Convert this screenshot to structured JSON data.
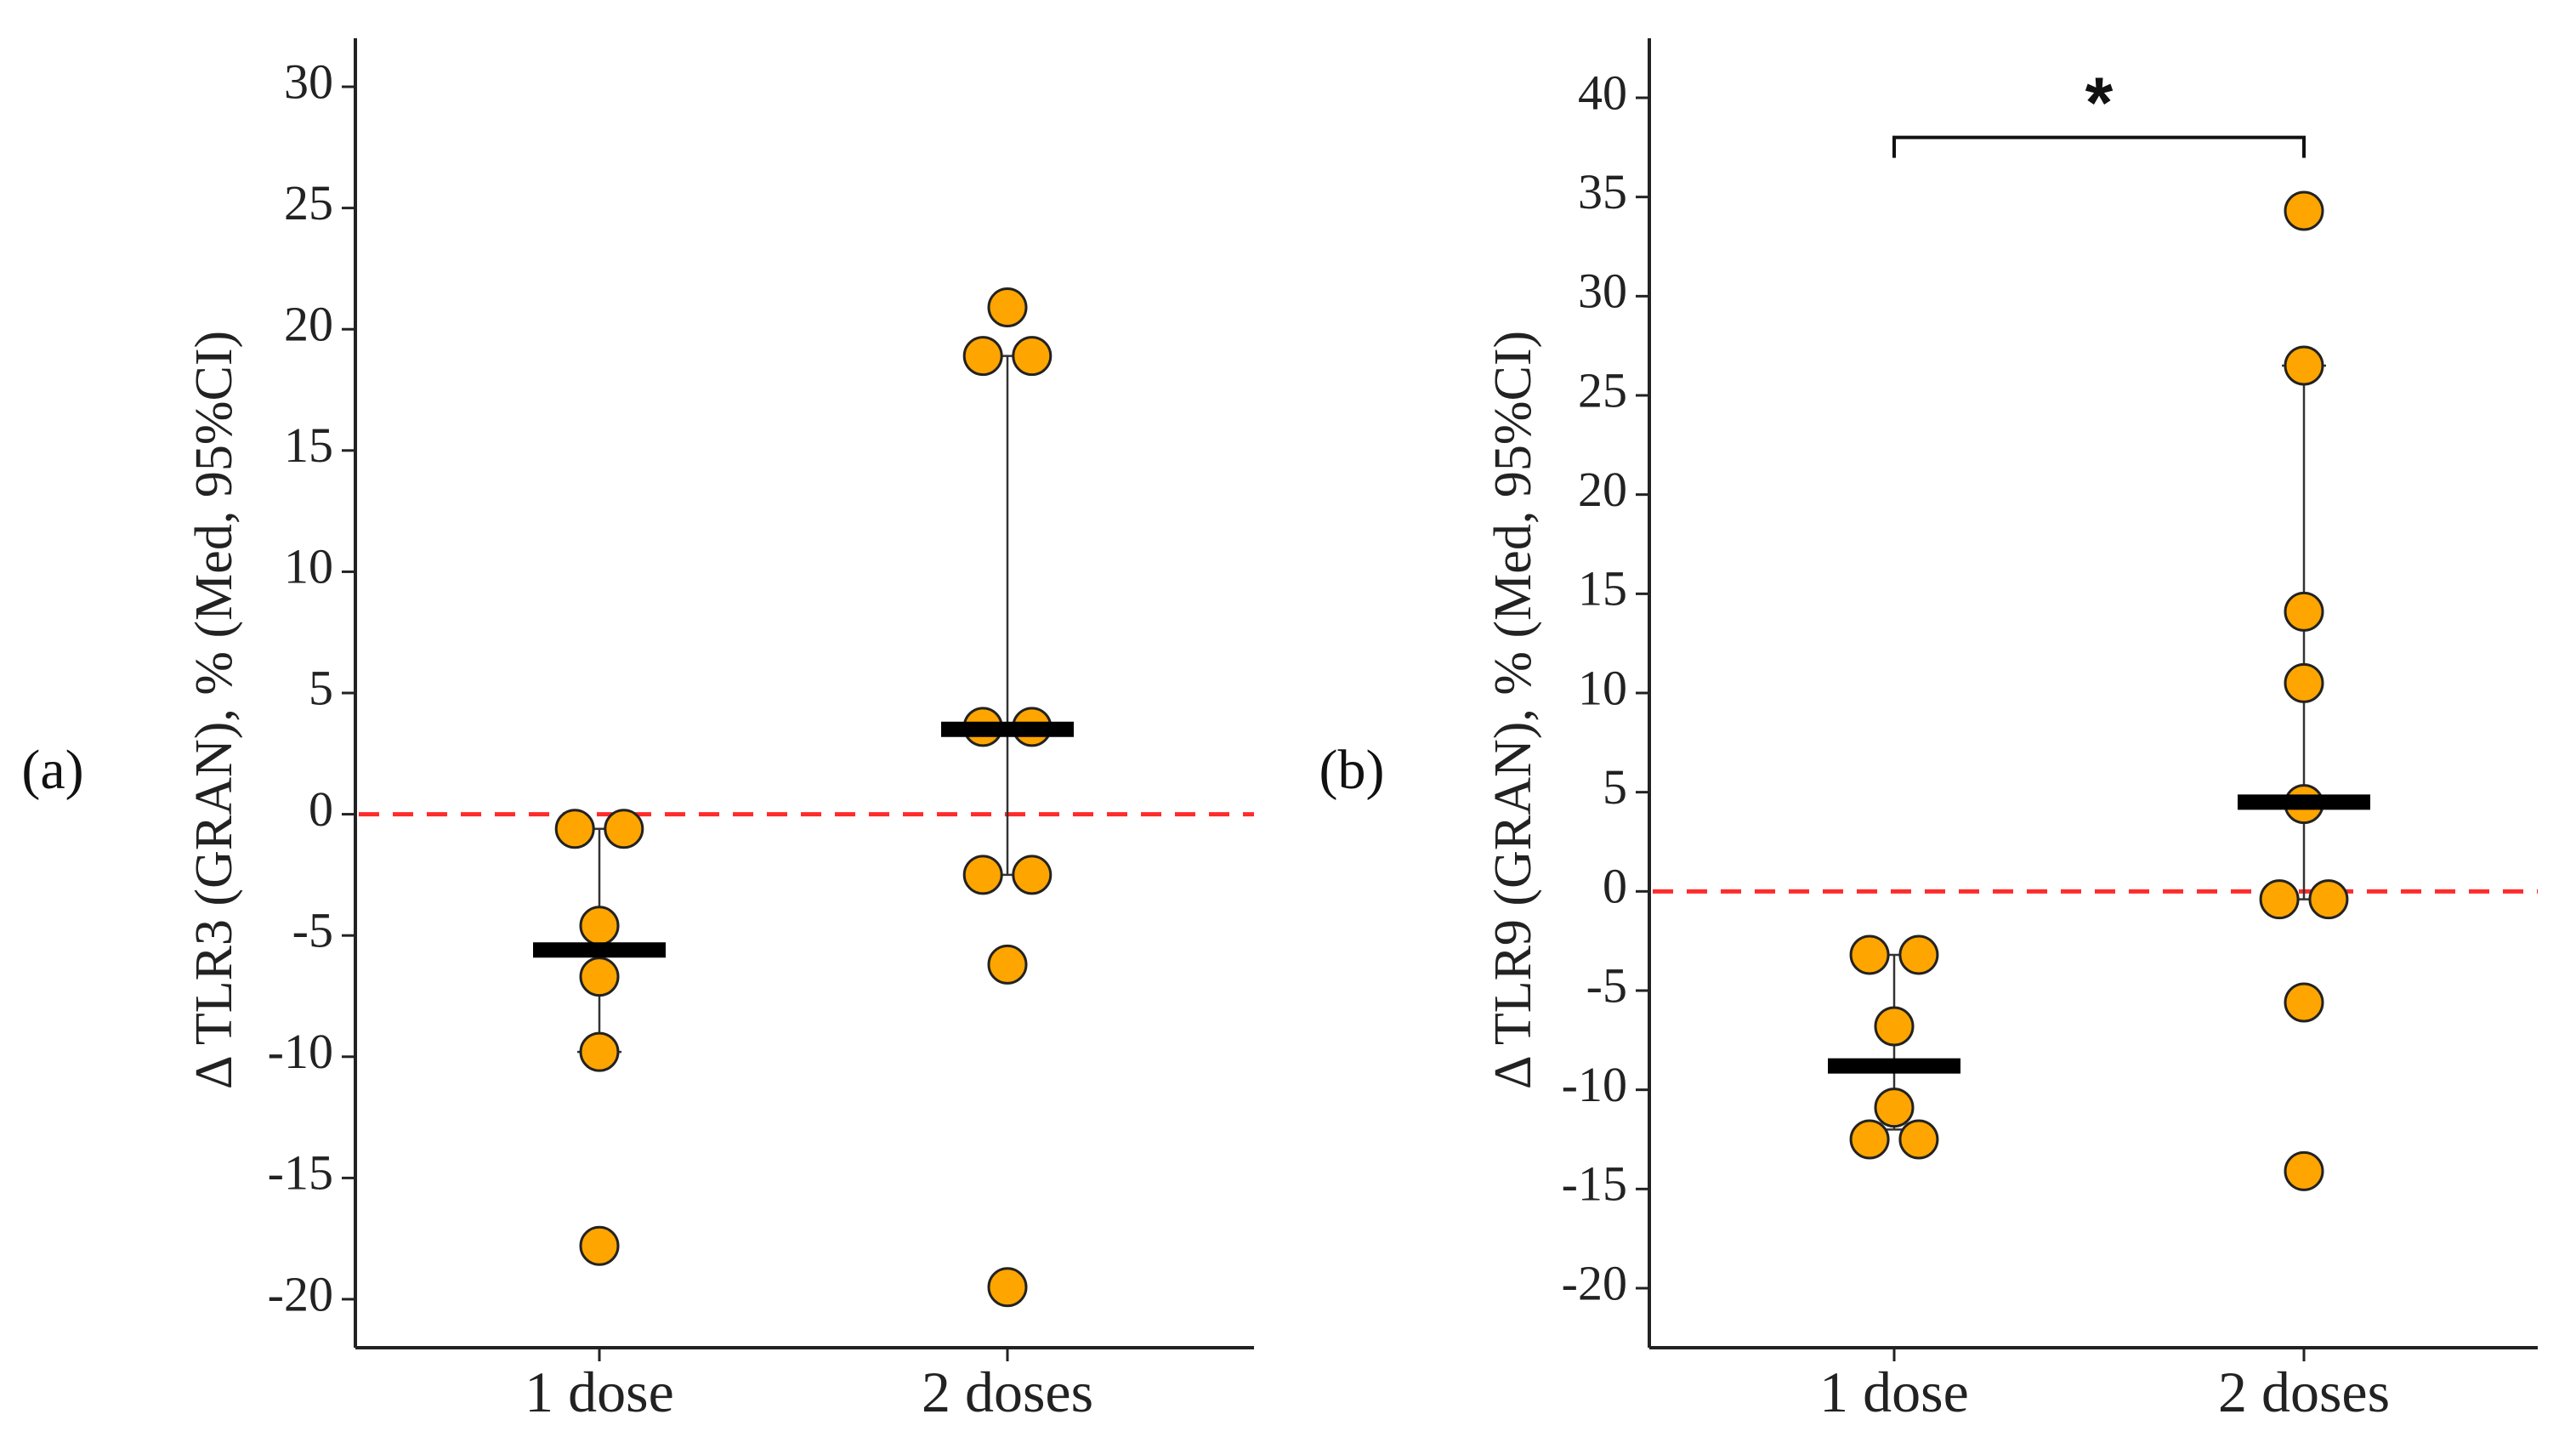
{
  "figure": {
    "panels": [
      {
        "label": "(a)"
      },
      {
        "label": "(b)"
      }
    ]
  },
  "chart_data": [
    {
      "type": "scatter",
      "panel": "(a)",
      "title": "",
      "xlabel": "",
      "ylabel": "Δ TLR3 (GRAN), % (Med, 95%CI)",
      "categories": [
        "1 dose",
        "2 doses"
      ],
      "ylim": [
        -22,
        32
      ],
      "yticks": [
        -20,
        -15,
        -10,
        -5,
        0,
        5,
        10,
        15,
        20,
        25,
        30
      ],
      "reference_line": {
        "y": 0,
        "color": "#ff2b2b",
        "style": "dashed"
      },
      "marker_color": "#ffa500",
      "groups": [
        {
          "category": "1 dose",
          "points": [
            {
              "dx": -0.06,
              "y": -0.6
            },
            {
              "dx": 0.06,
              "y": -0.6
            },
            {
              "dx": 0.0,
              "y": -4.6
            },
            {
              "dx": 0.0,
              "y": -6.7
            },
            {
              "dx": 0.0,
              "y": -9.8
            },
            {
              "dx": 0.0,
              "y": -17.8
            }
          ],
          "median": -5.6,
          "ci": [
            -9.8,
            -0.6
          ]
        },
        {
          "category": "2 doses",
          "points": [
            {
              "dx": 0.0,
              "y": 20.9
            },
            {
              "dx": -0.06,
              "y": 18.9
            },
            {
              "dx": 0.06,
              "y": 18.9
            },
            {
              "dx": -0.06,
              "y": 3.6
            },
            {
              "dx": 0.06,
              "y": 3.6
            },
            {
              "dx": -0.06,
              "y": -2.5
            },
            {
              "dx": 0.06,
              "y": -2.5
            },
            {
              "dx": 0.0,
              "y": -6.2
            },
            {
              "dx": 0.0,
              "y": -19.5
            }
          ],
          "median": 3.5,
          "ci": [
            -2.5,
            18.9
          ]
        }
      ]
    },
    {
      "type": "scatter",
      "panel": "(b)",
      "title": "",
      "xlabel": "",
      "ylabel": "Δ TLR9 (GRAN), % (Med, 95%CI)",
      "categories": [
        "1 dose",
        "2 doses"
      ],
      "ylim": [
        -23,
        43
      ],
      "yticks": [
        -20,
        -15,
        -10,
        -5,
        0,
        5,
        10,
        15,
        20,
        25,
        30,
        35,
        40
      ],
      "reference_line": {
        "y": 0,
        "color": "#ff2b2b",
        "style": "dashed"
      },
      "marker_color": "#ffa500",
      "significance": {
        "label": "*",
        "from": "1 dose",
        "to": "2 doses",
        "y": 38
      },
      "groups": [
        {
          "category": "1 dose",
          "points": [
            {
              "dx": -0.06,
              "y": -3.2
            },
            {
              "dx": 0.06,
              "y": -3.2
            },
            {
              "dx": 0.0,
              "y": -6.8
            },
            {
              "dx": 0.0,
              "y": -10.9
            },
            {
              "dx": -0.06,
              "y": -12.5
            },
            {
              "dx": 0.06,
              "y": -12.5
            }
          ],
          "median": -8.8,
          "ci": [
            -12.0,
            -3.2
          ]
        },
        {
          "category": "2 doses",
          "points": [
            {
              "dx": 0.0,
              "y": 34.3
            },
            {
              "dx": 0.0,
              "y": 26.5
            },
            {
              "dx": 0.0,
              "y": 14.1
            },
            {
              "dx": 0.0,
              "y": 10.5
            },
            {
              "dx": 0.0,
              "y": 4.4
            },
            {
              "dx": -0.06,
              "y": -0.4
            },
            {
              "dx": 0.06,
              "y": -0.4
            },
            {
              "dx": 0.0,
              "y": -5.6
            },
            {
              "dx": 0.0,
              "y": -14.1
            }
          ],
          "median": 4.5,
          "ci": [
            -0.4,
            26.5
          ]
        }
      ]
    }
  ]
}
